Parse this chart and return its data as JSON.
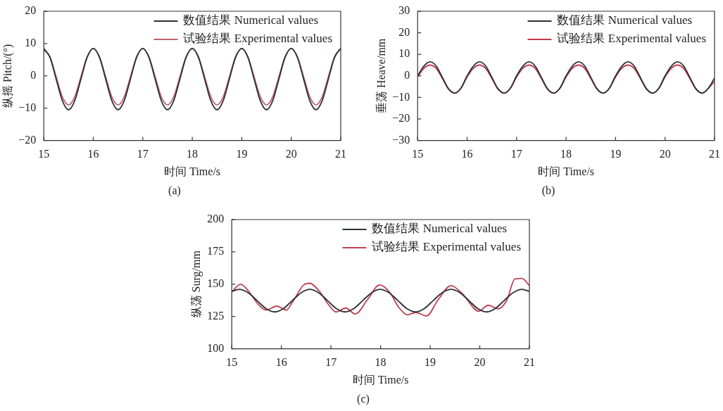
{
  "chart_data": [
    {
      "type": "line",
      "xlabel": "时间 Time/s",
      "ylabel": "纵摇 Pitch/(°)",
      "annotations": [
        "(a)"
      ],
      "legend": "top right",
      "xlim": [
        15,
        21
      ],
      "xticks": [
        15,
        16,
        17,
        18,
        19,
        20,
        21
      ],
      "ylim": [
        -20,
        20
      ],
      "yticks": [
        {
          "value": -20,
          "label": "−20"
        },
        {
          "value": -10,
          "label": "−10"
        },
        0,
        10,
        20
      ],
      "x": [
        15,
        15.125,
        15.25,
        15.375,
        15.5,
        15.625,
        15.75,
        15.875,
        16,
        16.125,
        16.25,
        16.375,
        16.5,
        16.625,
        16.75,
        16.875,
        17,
        17.125,
        17.25,
        17.375,
        17.5,
        17.625,
        17.75,
        17.875,
        18,
        18.125,
        18.25,
        18.375,
        18.5,
        18.625,
        18.75,
        18.875,
        19,
        19.125,
        19.25,
        19.375,
        19.5,
        19.625,
        19.75,
        19.875,
        20,
        20.125,
        20.25,
        20.375,
        20.5,
        20.625,
        20.75,
        20.875,
        21
      ],
      "series": [
        {
          "name": "数值结果 Numerical values",
          "color": "#2b3138",
          "values": [
            8.5,
            5.7,
            -1,
            -7.7,
            -10.5,
            -7.7,
            -1,
            5.7,
            8.5,
            5.7,
            -1,
            -7.7,
            -10.5,
            -7.7,
            -1,
            5.7,
            8.5,
            5.7,
            -1,
            -7.7,
            -10.5,
            -7.7,
            -1,
            5.7,
            8.5,
            5.7,
            -1,
            -7.7,
            -10.5,
            -7.7,
            -1,
            5.7,
            8.5,
            5.7,
            -1,
            -7.7,
            -10.5,
            -7.7,
            -1,
            5.7,
            8.5,
            5.7,
            -1,
            -7.7,
            -10.5,
            -7.7,
            -1,
            5.7,
            8.5
          ]
        },
        {
          "name": "试验结果 Experimental values",
          "color": "#c0606e",
          "values": [
            8,
            5.9,
            -0.3,
            -6.5,
            -9,
            -6.5,
            -0.3,
            5.9,
            8.5,
            5.9,
            -0.3,
            -6.5,
            -9,
            -6.5,
            -0.3,
            5.9,
            8.5,
            5.9,
            -0.3,
            -6.5,
            -9,
            -6.5,
            -0.3,
            5.9,
            8.5,
            5.9,
            -0.3,
            -6.5,
            -9,
            -6.5,
            -0.3,
            5.9,
            8.5,
            5.9,
            -0.3,
            -6.5,
            -9,
            -6.5,
            -0.3,
            5.9,
            8.5,
            5.9,
            -0.3,
            -6.5,
            -9,
            -6.5,
            -0.3,
            5.9,
            8.5
          ]
        }
      ]
    },
    {
      "type": "line",
      "xlabel": "时间 Time/s",
      "ylabel": "垂荡 Heave/mm",
      "annotations": [
        "(b)"
      ],
      "legend": "top right",
      "xlim": [
        15,
        21
      ],
      "xticks": [
        15,
        16,
        17,
        18,
        19,
        20,
        21
      ],
      "ylim": [
        -30,
        30
      ],
      "yticks": [
        {
          "value": -30,
          "label": "−30"
        },
        {
          "value": -20,
          "label": "−20"
        },
        {
          "value": -10,
          "label": "−10"
        },
        0,
        10,
        20,
        30
      ],
      "x": [
        15,
        15.125,
        15.25,
        15.375,
        15.5,
        15.625,
        15.75,
        15.875,
        16,
        16.125,
        16.25,
        16.375,
        16.5,
        16.625,
        16.75,
        16.875,
        17,
        17.125,
        17.25,
        17.375,
        17.5,
        17.625,
        17.75,
        17.875,
        18,
        18.125,
        18.25,
        18.375,
        18.5,
        18.625,
        18.75,
        18.875,
        19,
        19.125,
        19.25,
        19.375,
        19.5,
        19.625,
        19.75,
        19.875,
        20,
        20.125,
        20.25,
        20.375,
        20.5,
        20.625,
        20.75,
        20.875,
        21
      ],
      "series": [
        {
          "name": "数值结果 Numerical values",
          "color": "#2b3138",
          "values": [
            0,
            4.5,
            6.5,
            4.6,
            -0.7,
            -6,
            -8,
            -5.7,
            0,
            4.5,
            6.5,
            4.6,
            -0.7,
            -6,
            -8,
            -5.7,
            0,
            4.5,
            6.5,
            4.6,
            -0.7,
            -6,
            -8,
            -5.7,
            0,
            4.5,
            6.5,
            4.6,
            -0.7,
            -6,
            -8,
            -5.7,
            0,
            4.5,
            6.5,
            4.6,
            -0.7,
            -6,
            -8,
            -5.7,
            0,
            4.5,
            6.5,
            4.6,
            -0.7,
            -6,
            -8,
            -5.7,
            -1
          ]
        },
        {
          "name": "试验结果 Experimental values",
          "color": "#c0394a",
          "values": [
            -0.5,
            3.5,
            5,
            3.5,
            -1.2,
            -6.2,
            -8,
            -5.8,
            -0.5,
            3.5,
            5,
            3.5,
            -1.2,
            -6.2,
            -8,
            -5.8,
            -0.5,
            3.5,
            5,
            3.5,
            -1.2,
            -6.2,
            -8,
            -5.8,
            -0.5,
            3.5,
            5,
            3.5,
            -1.2,
            -6.2,
            -8,
            -5.8,
            -0.5,
            3.5,
            5,
            3.5,
            -1.2,
            -6.2,
            -8,
            -5.8,
            -0.5,
            3.5,
            5,
            3.5,
            -1.2,
            -6.2,
            -8,
            -5.8,
            -2.5
          ]
        }
      ]
    },
    {
      "type": "line",
      "xlabel": "时间 Time/s",
      "ylabel": "纵荡 Surg/mm",
      "annotations": [
        "(c)"
      ],
      "legend": "top right",
      "xlim": [
        15,
        21
      ],
      "xticks": [
        15,
        16,
        17,
        18,
        19,
        20,
        21
      ],
      "ylim": [
        100,
        200
      ],
      "yticks": [
        100,
        125,
        150,
        175,
        200
      ],
      "series": [
        {
          "name": "数值结果 Numerical values",
          "color": "#2b3138",
          "x": [
            15,
            15.15,
            15.33,
            15.51,
            15.69,
            15.87,
            16.04,
            16.22,
            16.4,
            16.57,
            16.75,
            16.93,
            17.11,
            17.28,
            17.46,
            17.64,
            17.82,
            17.99,
            18.17,
            18.35,
            18.53,
            18.71,
            18.88,
            19.06,
            19.24,
            19.42,
            19.6,
            19.78,
            19.96,
            20.14,
            20.31,
            20.49,
            20.67,
            20.85,
            21
          ],
          "values": [
            144.5,
            146,
            143.4,
            137.3,
            131.1,
            128.5,
            131.1,
            137.3,
            143.4,
            146,
            143.4,
            137.3,
            131.1,
            128.5,
            131.1,
            137.3,
            143.4,
            146,
            143.4,
            137.3,
            131.1,
            128.5,
            131.1,
            137.3,
            143.4,
            146,
            143.4,
            137.3,
            131.1,
            128.5,
            131.1,
            137.3,
            143.4,
            146,
            144.5
          ]
        },
        {
          "name": "试验结果 Experimental values",
          "color": "#c0404f",
          "x": [
            15,
            15.18,
            15.35,
            15.55,
            15.69,
            15.91,
            16.1,
            16.23,
            16.45,
            16.57,
            16.76,
            16.96,
            17.1,
            17.3,
            17.49,
            17.74,
            17.98,
            18.18,
            18.37,
            18.54,
            18.71,
            18.93,
            19.15,
            19.42,
            19.64,
            19.98,
            20.17,
            20.37,
            20.54,
            20.71,
            20.85,
            21
          ],
          "values": [
            144,
            150,
            144,
            133.7,
            130,
            133,
            130,
            136.5,
            149.4,
            150.7,
            144.8,
            133.7,
            128.5,
            131.5,
            126.9,
            138.3,
            149.4,
            143.9,
            131.9,
            126.3,
            128.1,
            125.4,
            137.4,
            148.9,
            143,
            129.1,
            133.7,
            130.9,
            137.4,
            154.1,
            154.4,
            148.9
          ]
        }
      ]
    }
  ]
}
